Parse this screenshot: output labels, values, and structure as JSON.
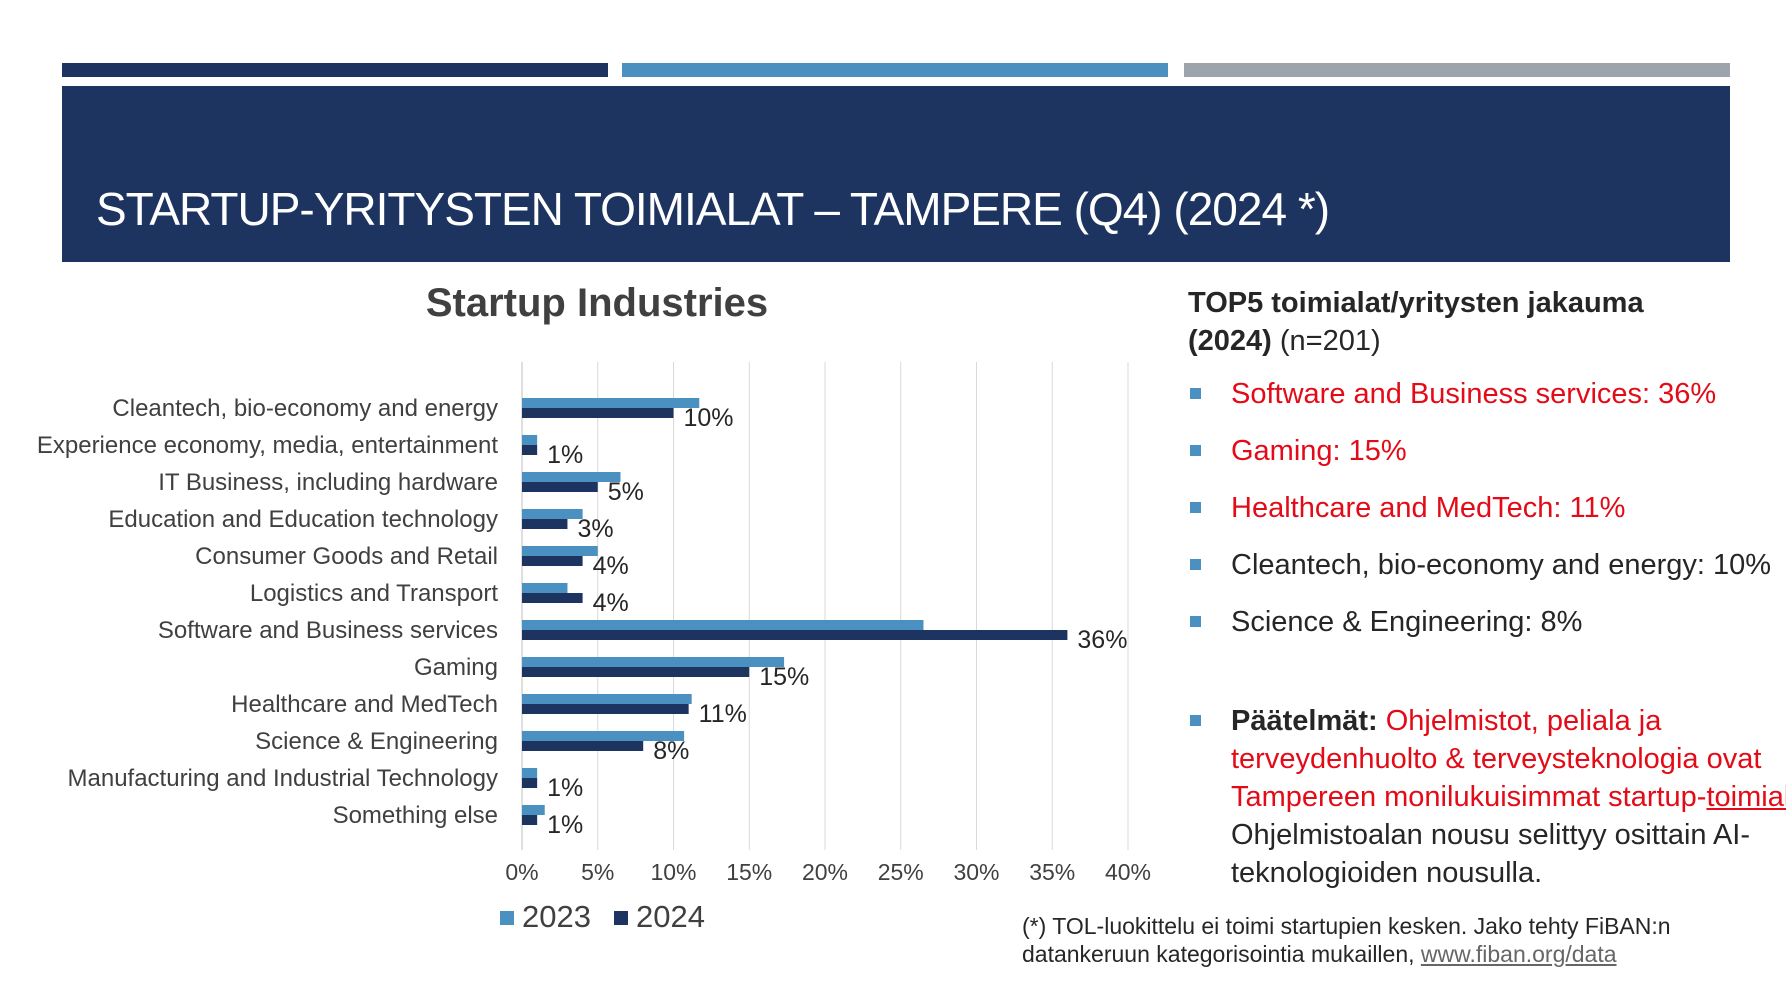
{
  "colors": {
    "navy": "#1d3461",
    "mid_blue": "#4a90c0",
    "grey": "#9ea4ab",
    "red": "#e30b17",
    "series_2023": "#4a90c0",
    "series_2024": "#1d3461"
  },
  "header": {
    "title": "STARTUP-YRITYSTEN TOIMIALAT – TAMPERE (Q4) (2024 *)"
  },
  "chart_data": {
    "type": "bar",
    "orientation": "horizontal",
    "title": "Startup Industries",
    "categories": [
      "Cleantech, bio-economy and energy",
      "Experience economy, media, entertainment",
      "IT Business, including hardware",
      "Education and Education technology",
      "Consumer Goods and Retail",
      "Logistics and Transport",
      "Software and Business services",
      "Gaming",
      "Healthcare and MedTech",
      "Science & Engineering",
      "Manufacturing and Industrial Technology",
      "Something else"
    ],
    "series": [
      {
        "name": "2023",
        "values": [
          11.7,
          1.0,
          6.5,
          4.0,
          5.0,
          3.0,
          26.5,
          17.3,
          11.2,
          10.7,
          1.0,
          1.5
        ]
      },
      {
        "name": "2024",
        "values": [
          10,
          1,
          5,
          3,
          4,
          4,
          36,
          15,
          11,
          8,
          1,
          1
        ]
      }
    ],
    "data_labels_2024": [
      "10%",
      "1%",
      "5%",
      "3%",
      "4%",
      "4%",
      "36%",
      "15%",
      "11%",
      "8%",
      "1%",
      "1%"
    ],
    "x_ticks": [
      "0%",
      "5%",
      "10%",
      "15%",
      "20%",
      "25%",
      "30%",
      "35%",
      "40%"
    ],
    "xlim": [
      0,
      40
    ],
    "legend": [
      "2023",
      "2024"
    ],
    "legend_position": "bottom",
    "grid": true
  },
  "top5": {
    "heading": "TOP5 toimialat/yritysten jakauma",
    "heading_year": "(2024)",
    "heading_n": " (n=201)",
    "items": [
      {
        "text": "Software and Business services: 36%",
        "highlight": true
      },
      {
        "text": "Gaming: 15%",
        "highlight": true
      },
      {
        "text": "Healthcare and MedTech: 11%",
        "highlight": true
      },
      {
        "text": "Cleantech, bio-economy and energy: 10%",
        "highlight": false
      },
      {
        "text": "Science & Engineering: 8%",
        "highlight": false
      }
    ]
  },
  "conclusion": {
    "label": "Päätelmät:",
    "red_text_a": " Ohjelmistot, peliala ja terveydenhuolto & terveysteknologia ovat Tampereen monilukuisimmat startup-",
    "red_text_b": "toimialat",
    "rest": ". Ohjelmistoalan nousu selittyy osittain AI-teknologioiden nousulla."
  },
  "footnote": {
    "text": "(*) TOL-luokittelu ei toimi startupien kesken. Jako tehty FiBAN:n datankeruun kategorisointia mukaillen, ",
    "link": "www.fiban.org/data"
  }
}
